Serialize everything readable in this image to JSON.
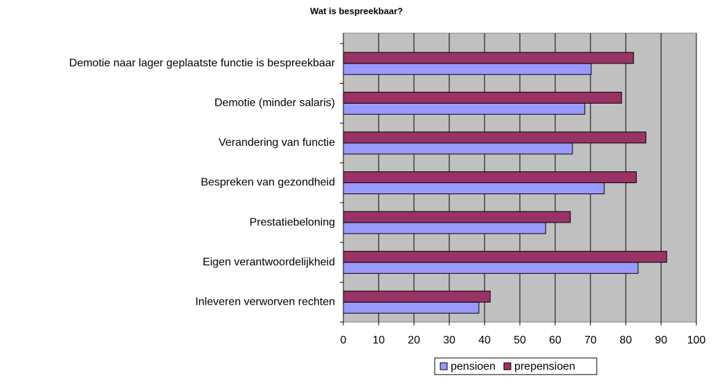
{
  "chart_data": {
    "type": "bar",
    "orientation": "horizontal",
    "title": "Wat is bespreekbaar?",
    "categories": [
      "Demotie naar lager geplaatste functie is bespreekbaar",
      "Demotie (minder salaris)",
      "Verandering van functie",
      "Bespreken van gezondheid",
      "Prestatiebeloning",
      "Eigen verantwoordelijkheid",
      "Inleveren verworven rechten"
    ],
    "series": [
      {
        "name": "pensioen",
        "color": "#9999ff",
        "values": [
          70.2,
          68.4,
          64.9,
          73.9,
          57.3,
          83.5,
          38.4
        ]
      },
      {
        "name": "prepensioen",
        "color": "#993366",
        "values": [
          82.2,
          78.8,
          85.7,
          83,
          64.3,
          91.6,
          41.6
        ]
      }
    ],
    "xlim": [
      0,
      100
    ],
    "xticks": [
      0,
      10,
      20,
      30,
      40,
      50,
      60,
      70,
      80,
      90,
      100
    ],
    "grid": true,
    "legend": "bottom"
  }
}
